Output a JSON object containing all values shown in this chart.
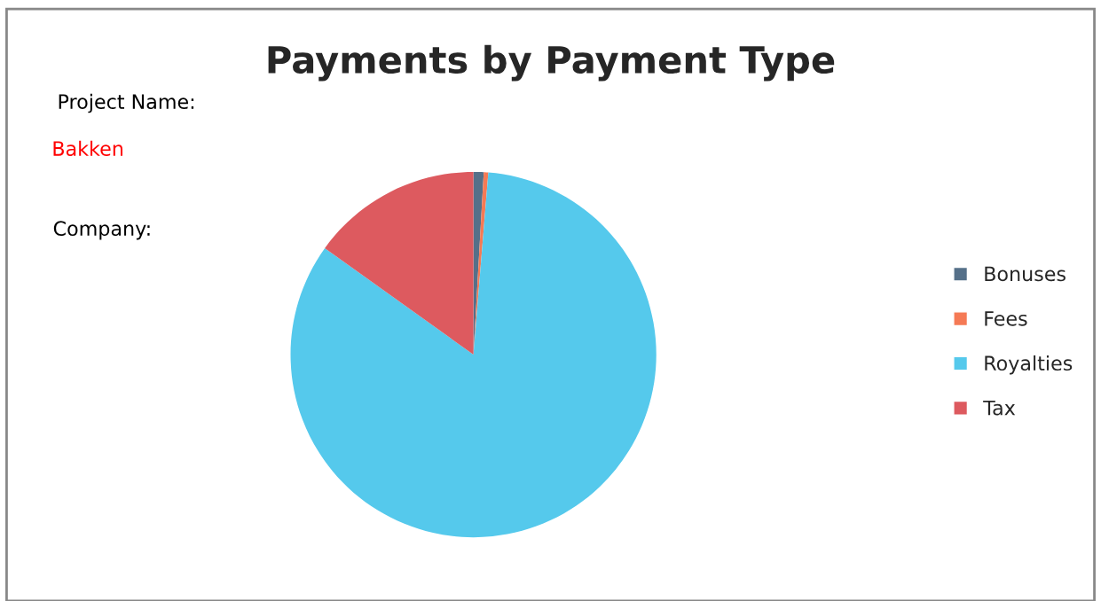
{
  "chart_data": {
    "type": "pie",
    "title": "Payments by Payment Type",
    "categories": [
      "Bonuses",
      "Fees",
      "Royalties",
      "Tax"
    ],
    "values": [
      0.9,
      0.4,
      83.6,
      15.1
    ],
    "colors": [
      "#557089",
      "#f57a55",
      "#55c9ec",
      "#dd5a5f"
    ],
    "annotations": [
      "Project Name:",
      "Bakken",
      "Company:"
    ],
    "legend": "right"
  }
}
